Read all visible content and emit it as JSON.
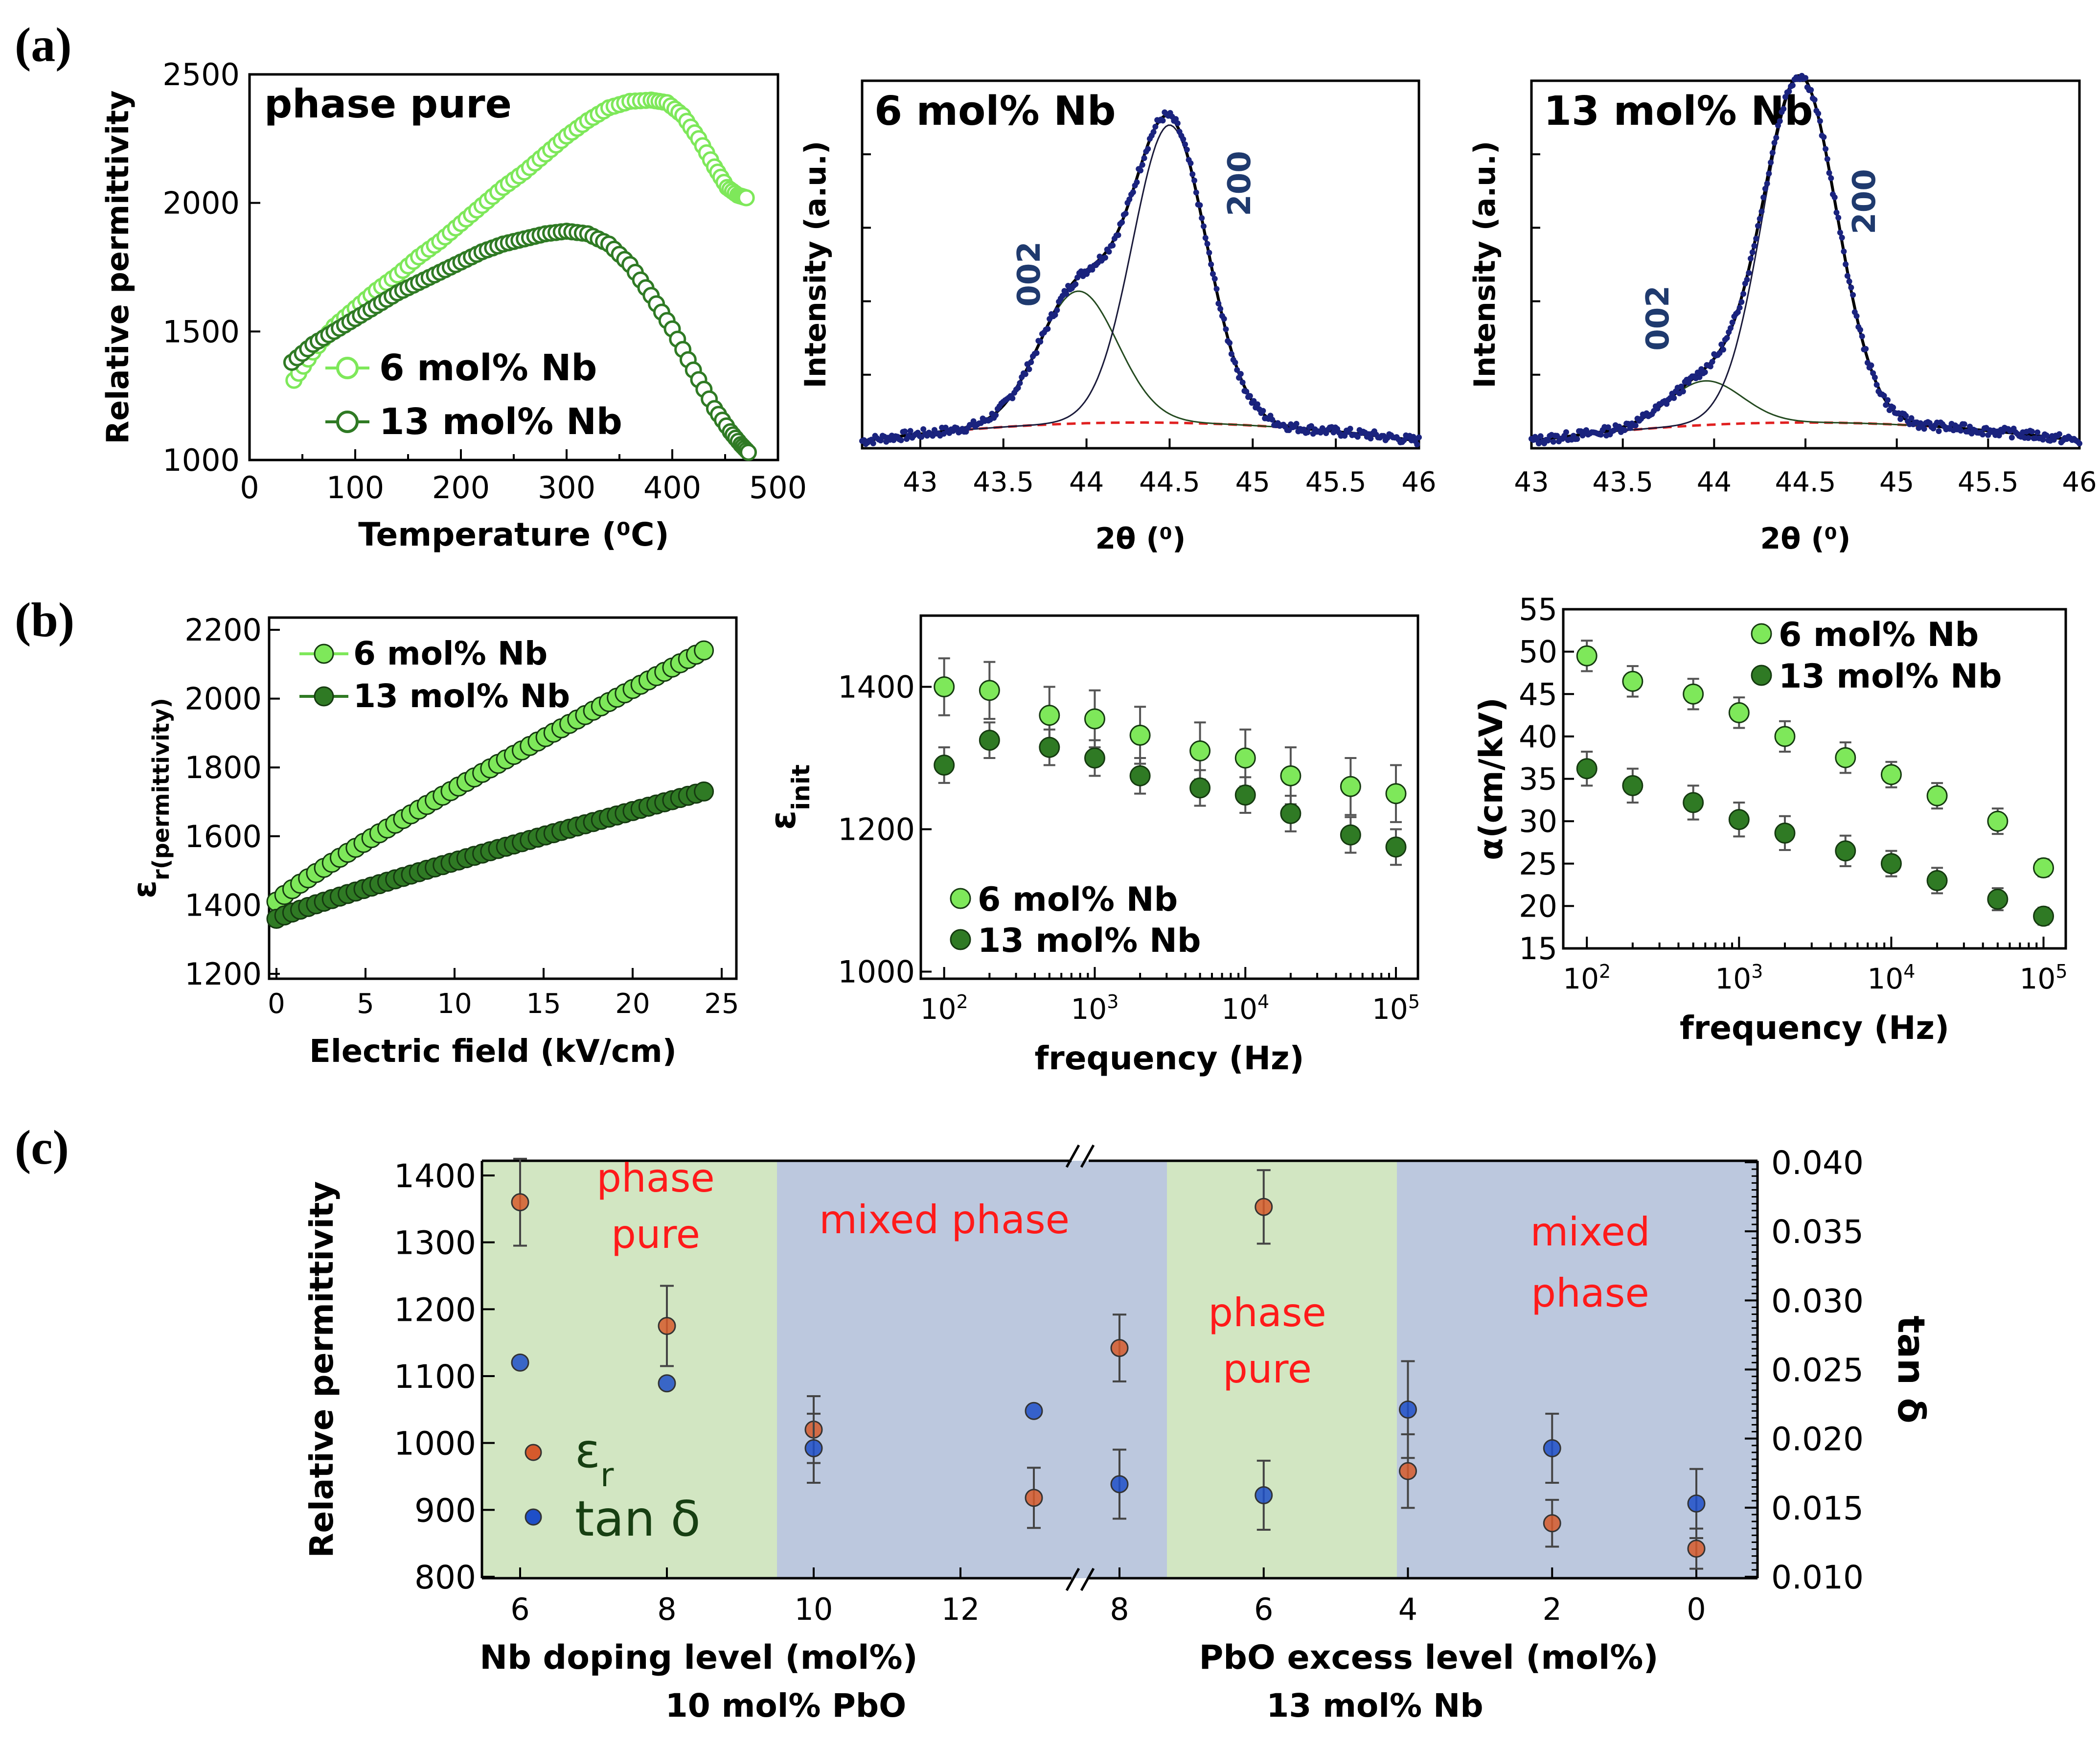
{
  "panel_labels": [
    "(a)",
    "(b)",
    "(c)"
  ],
  "colors": {
    "light_green": "#7ee85a",
    "dark_green": "#2f7a24",
    "axis": "#000000",
    "fit_dark": "#244a20",
    "fit_navy": "#1a1a3a",
    "baseline": "#e02020",
    "data_navy": "#1a237e",
    "peak_label": "#1f3a6e",
    "shade_green": "#d2e6c2",
    "shade_blue": "#bcc8de",
    "er_orange": "#d65a2c",
    "tan_blue": "#1e4fc8",
    "label_red": "#ff1a1a",
    "legend_text_dark": "#173f12"
  },
  "chart_data": [
    {
      "id": "a1",
      "type": "scatter",
      "title": "",
      "annotation": "phase pure",
      "xlabel": "Temperature (⁰C)",
      "ylabel": "Relative permittivity",
      "xlim": [
        0,
        500
      ],
      "ylim": [
        1000,
        2500
      ],
      "xticks": [
        "0",
        "100",
        "200",
        "300",
        "400",
        "500"
      ],
      "yticks": [
        "1000",
        "1500",
        "2000",
        "2500"
      ],
      "series": [
        {
          "name": "6 mol% Nb",
          "color": "#7ee85a",
          "marker": "open-circle",
          "x": [
            42,
            60,
            80,
            100,
            120,
            140,
            160,
            180,
            200,
            220,
            240,
            260,
            280,
            300,
            320,
            340,
            360,
            380,
            395,
            410,
            425,
            440,
            452,
            462,
            470
          ],
          "y": [
            1310,
            1420,
            1520,
            1590,
            1660,
            1720,
            1790,
            1850,
            1920,
            1990,
            2060,
            2120,
            2190,
            2260,
            2320,
            2370,
            2395,
            2400,
            2390,
            2340,
            2250,
            2140,
            2060,
            2030,
            2020
          ]
        },
        {
          "name": "13 mol% Nb",
          "color": "#2f7a24",
          "marker": "open-circle",
          "x": [
            40,
            60,
            80,
            100,
            120,
            140,
            160,
            180,
            200,
            220,
            240,
            260,
            280,
            300,
            320,
            340,
            360,
            380,
            400,
            420,
            440,
            455,
            465,
            472
          ],
          "y": [
            1380,
            1450,
            1500,
            1550,
            1600,
            1650,
            1690,
            1730,
            1770,
            1810,
            1840,
            1860,
            1880,
            1890,
            1880,
            1840,
            1760,
            1640,
            1510,
            1350,
            1200,
            1110,
            1060,
            1030
          ]
        }
      ]
    },
    {
      "id": "a2",
      "type": "line",
      "annotation": "6 mol% Nb",
      "xlabel": "2θ (⁰)",
      "ylabel": "Intensity (a.u.)",
      "xlim": [
        42.65,
        46
      ],
      "ylim": [
        0,
        1
      ],
      "xticks": [
        "43",
        "43.5",
        "44",
        "44.5",
        "45",
        "45.5",
        "46"
      ],
      "peaks": [
        {
          "label": "002",
          "center": 43.95,
          "height": 0.36,
          "width": 0.35
        },
        {
          "label": "200",
          "center": 44.5,
          "height": 0.81,
          "width": 0.33
        }
      ],
      "baseline": [
        0.02,
        0.07,
        0.0
      ],
      "series": [
        {
          "name": "data",
          "style": "points",
          "color": "#1a237e"
        },
        {
          "name": "fit",
          "style": "line",
          "color": "#000000"
        },
        {
          "name": "002 component",
          "style": "line",
          "color": "#244a20"
        },
        {
          "name": "200 component",
          "style": "line",
          "color": "#1a1a3a"
        },
        {
          "name": "background",
          "style": "dashed",
          "color": "#e02020"
        }
      ]
    },
    {
      "id": "a3",
      "type": "line",
      "annotation": "13 mol% Nb",
      "xlabel": "2θ (⁰)",
      "ylabel": "Intensity (a.u.)",
      "xlim": [
        43,
        46
      ],
      "ylim": [
        0,
        1
      ],
      "xticks": [
        "43",
        "43.5",
        "44",
        "44.5",
        "45",
        "45.5",
        "46"
      ],
      "peaks": [
        {
          "label": "002",
          "center": 43.95,
          "height": 0.12,
          "width": 0.3
        },
        {
          "label": "200",
          "center": 44.47,
          "height": 0.94,
          "width": 0.3
        }
      ],
      "baseline": [
        0.02,
        0.07,
        0.0
      ],
      "series": [
        {
          "name": "data",
          "style": "points",
          "color": "#1a237e"
        },
        {
          "name": "fit",
          "style": "line",
          "color": "#000000"
        },
        {
          "name": "002 component",
          "style": "line",
          "color": "#244a20"
        },
        {
          "name": "200 component",
          "style": "line",
          "color": "#1a1a3a"
        },
        {
          "name": "background",
          "style": "dashed",
          "color": "#e02020"
        }
      ]
    },
    {
      "id": "b1",
      "type": "scatter",
      "xlabel": "Electric field (kV/cm)",
      "ylabel": "εr(permittivity)",
      "xlim": [
        0,
        25
      ],
      "ylim": [
        1200,
        2200
      ],
      "xticks": [
        "0",
        "5",
        "10",
        "15",
        "20",
        "25"
      ],
      "yticks": [
        "1200",
        "1400",
        "1600",
        "1800",
        "2000",
        "2200"
      ],
      "series": [
        {
          "name": "6 mol% Nb",
          "color": "#7ee85a",
          "x": [
            0,
            24
          ],
          "y_start": 1410,
          "y_end": 2140,
          "n": 55
        },
        {
          "name": "13 mol% Nb",
          "color": "#2f7a24",
          "x": [
            0,
            24
          ],
          "y_start": 1360,
          "y_end": 1730,
          "n": 55
        }
      ]
    },
    {
      "id": "b2",
      "type": "scatter",
      "xlabel": "frequency (Hz)",
      "ylabel": "εinit",
      "xscale": "log",
      "xlim": [
        70,
        140000
      ],
      "ylim": [
        990,
        1500
      ],
      "xticks": [
        "10^2",
        "10^3",
        "10^4",
        "10^5"
      ],
      "yticks": [
        "1000",
        "1200",
        "1400"
      ],
      "x": [
        100,
        200,
        500,
        1000,
        2000,
        5000,
        10000,
        20000,
        50000,
        100000
      ],
      "series": [
        {
          "name": "6 mol% Nb",
          "color": "#7ee85a",
          "values": [
            1400,
            1395,
            1360,
            1355,
            1332,
            1310,
            1300,
            1275,
            1260,
            1250
          ],
          "err": [
            40,
            40,
            40,
            40,
            40,
            40,
            40,
            40,
            40,
            40
          ]
        },
        {
          "name": "13 mol% Nb",
          "color": "#2f7a24",
          "values": [
            1290,
            1325,
            1315,
            1300,
            1275,
            1258,
            1248,
            1222,
            1192,
            1175
          ],
          "err": [
            25,
            25,
            25,
            25,
            25,
            25,
            25,
            25,
            25,
            25
          ]
        }
      ]
    },
    {
      "id": "b3",
      "type": "scatter",
      "xlabel": "frequency (Hz)",
      "ylabel": "α(cm/kV)",
      "xscale": "log",
      "xlim": [
        70,
        140000
      ],
      "ylim": [
        15,
        55
      ],
      "xticks": [
        "10^2",
        "10^3",
        "10^4",
        "10^5"
      ],
      "yticks": [
        "15",
        "20",
        "25",
        "30",
        "35",
        "40",
        "45",
        "50",
        "55"
      ],
      "x": [
        100,
        200,
        500,
        1000,
        2000,
        5000,
        10000,
        20000,
        50000,
        100000
      ],
      "series": [
        {
          "name": "6 mol% Nb",
          "color": "#7ee85a",
          "values": [
            49.5,
            46.5,
            45,
            42.8,
            40,
            37.5,
            35.5,
            33,
            30,
            24.5
          ],
          "err": [
            1.8,
            1.8,
            1.8,
            1.8,
            1.8,
            1.8,
            1.5,
            1.5,
            1.5,
            1
          ]
        },
        {
          "name": "13 mol% Nb",
          "color": "#2f7a24",
          "values": [
            36.2,
            34.2,
            32.2,
            30.2,
            28.6,
            26.5,
            25,
            23,
            20.8,
            18.8
          ],
          "err": [
            2,
            2,
            2,
            2,
            2,
            1.8,
            1.5,
            1.5,
            1.3,
            1
          ]
        }
      ]
    },
    {
      "id": "c",
      "type": "scatter",
      "xlabel_left": "Nb doping level (mol%)",
      "sublabel_left": "10 mol% PbO",
      "xlabel_right": "PbO excess level (mol%)",
      "sublabel_right": "13 mol% Nb",
      "ylabel": "Relative permittivity",
      "y2label": "tan δ",
      "ylim": [
        800,
        1400
      ],
      "y2lim": [
        0.01,
        0.04
      ],
      "yticks": [
        "800",
        "900",
        "1000",
        "1100",
        "1200",
        "1300",
        "1400"
      ],
      "y2ticks": [
        "0.010",
        "0.015",
        "0.020",
        "0.025",
        "0.030",
        "0.035",
        "0.040"
      ],
      "xticks_left": [
        "6",
        "8",
        "10",
        "12"
      ],
      "xticks_right": [
        "8",
        "6",
        "4",
        "2",
        "0"
      ],
      "regions": [
        "phase pure",
        "mixed phase",
        "phase pure",
        "mixed phase"
      ],
      "legend": [
        "εr",
        "tan δ"
      ],
      "er": [
        {
          "group": "Nb",
          "x": 6,
          "value": 1360,
          "err": 65
        },
        {
          "group": "Nb",
          "x": 8,
          "value": 1175,
          "err": 60
        },
        {
          "group": "Nb",
          "x": 10,
          "value": 1020,
          "err": 50
        },
        {
          "group": "Nb",
          "x": 13,
          "value": 918,
          "err": 45
        },
        {
          "group": "PbO",
          "x": 8,
          "value": 1142,
          "err": 50
        },
        {
          "group": "PbO",
          "x": 6,
          "value": 1353,
          "err": 55
        },
        {
          "group": "PbO",
          "x": 4,
          "value": 958,
          "err": 55
        },
        {
          "group": "PbO",
          "x": 2,
          "value": 880,
          "err": 35
        },
        {
          "group": "PbO",
          "x": 0,
          "value": 842,
          "err": 30
        }
      ],
      "tan_delta": [
        {
          "group": "Nb",
          "x": 6,
          "value": 0.0255
        },
        {
          "group": "Nb",
          "x": 8,
          "value": 0.024
        },
        {
          "group": "Nb",
          "x": 10,
          "value": 0.0193,
          "err": 0.0025
        },
        {
          "group": "Nb",
          "x": 13,
          "value": 0.022
        },
        {
          "group": "PbO",
          "x": 8,
          "value": 0.0167,
          "err": 0.0025
        },
        {
          "group": "PbO",
          "x": 6,
          "value": 0.0159,
          "err": 0.0025
        },
        {
          "group": "PbO",
          "x": 4,
          "value": 0.0221,
          "err": 0.0035
        },
        {
          "group": "PbO",
          "x": 2,
          "value": 0.0193,
          "err": 0.0025
        },
        {
          "group": "PbO",
          "x": 0,
          "value": 0.0153,
          "err": 0.0025
        }
      ]
    }
  ]
}
